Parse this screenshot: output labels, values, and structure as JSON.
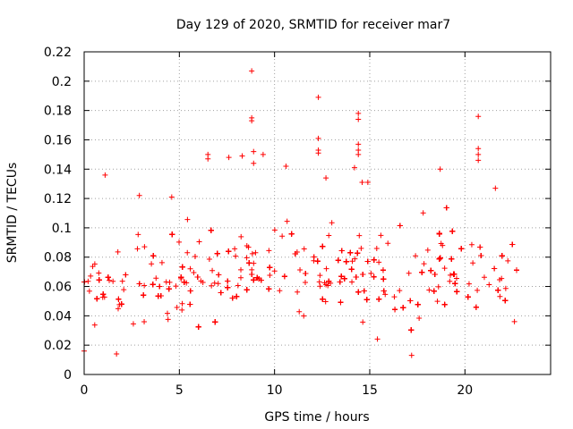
{
  "chart_data": {
    "type": "scatter",
    "title": "Day 129 of 2020, SRMTID for receiver mar7",
    "xlabel": "GPS time / hours",
    "ylabel": "SRMTID / TECUs",
    "xlim": [
      0,
      24.5
    ],
    "ylim": [
      0,
      0.22
    ],
    "x_ticks": [
      0,
      5,
      10,
      15,
      20
    ],
    "x_tick_labels": [
      "0",
      "5",
      "10",
      "15",
      "20"
    ],
    "y_ticks": [
      0,
      0.02,
      0.04,
      0.06,
      0.08,
      0.1,
      0.12,
      0.14,
      0.16,
      0.18,
      0.2,
      0.22
    ],
    "y_tick_labels": [
      "0",
      "0.02",
      "0.04",
      "0.06",
      "0.08",
      "0.1",
      "0.12",
      "0.14",
      "0.16",
      "0.18",
      "0.2",
      "0.22"
    ],
    "grid": true,
    "marker": "+",
    "color": "#ff0000",
    "series": [
      {
        "name": "SRMTID",
        "x_range_hours": [
          0,
          22.8
        ],
        "n_points": 2200,
        "typical_range": [
          0.02,
          0.12
        ],
        "mean_trend": [
          [
            0,
            0.055
          ],
          [
            2,
            0.058
          ],
          [
            4,
            0.062
          ],
          [
            6,
            0.07
          ],
          [
            8,
            0.075
          ],
          [
            10,
            0.07
          ],
          [
            12,
            0.068
          ],
          [
            14,
            0.07
          ],
          [
            16,
            0.064
          ],
          [
            17,
            0.055
          ],
          [
            18,
            0.07
          ],
          [
            20,
            0.072
          ],
          [
            22,
            0.07
          ],
          [
            22.8,
            0.072
          ]
        ],
        "notable_points": [
          {
            "x": 0.0,
            "y": 0.016
          },
          {
            "x": 1.1,
            "y": 0.136
          },
          {
            "x": 1.7,
            "y": 0.014
          },
          {
            "x": 2.9,
            "y": 0.122
          },
          {
            "x": 4.6,
            "y": 0.121
          },
          {
            "x": 6.5,
            "y": 0.15
          },
          {
            "x": 6.5,
            "y": 0.147
          },
          {
            "x": 7.6,
            "y": 0.148
          },
          {
            "x": 8.3,
            "y": 0.149
          },
          {
            "x": 8.8,
            "y": 0.207
          },
          {
            "x": 8.8,
            "y": 0.175
          },
          {
            "x": 8.8,
            "y": 0.173
          },
          {
            "x": 8.9,
            "y": 0.152
          },
          {
            "x": 8.9,
            "y": 0.144
          },
          {
            "x": 9.4,
            "y": 0.15
          },
          {
            "x": 10.6,
            "y": 0.142
          },
          {
            "x": 12.3,
            "y": 0.189
          },
          {
            "x": 12.3,
            "y": 0.161
          },
          {
            "x": 12.3,
            "y": 0.153
          },
          {
            "x": 12.3,
            "y": 0.151
          },
          {
            "x": 12.7,
            "y": 0.134
          },
          {
            "x": 14.4,
            "y": 0.178
          },
          {
            "x": 14.4,
            "y": 0.174
          },
          {
            "x": 14.4,
            "y": 0.157
          },
          {
            "x": 14.4,
            "y": 0.153
          },
          {
            "x": 14.4,
            "y": 0.15
          },
          {
            "x": 14.2,
            "y": 0.141
          },
          {
            "x": 14.6,
            "y": 0.131
          },
          {
            "x": 14.9,
            "y": 0.131
          },
          {
            "x": 17.2,
            "y": 0.013
          },
          {
            "x": 18.7,
            "y": 0.14
          },
          {
            "x": 20.7,
            "y": 0.176
          },
          {
            "x": 20.7,
            "y": 0.154
          },
          {
            "x": 20.7,
            "y": 0.15
          },
          {
            "x": 20.7,
            "y": 0.146
          },
          {
            "x": 21.6,
            "y": 0.127
          },
          {
            "x": 22.6,
            "y": 0.036
          }
        ]
      }
    ]
  }
}
